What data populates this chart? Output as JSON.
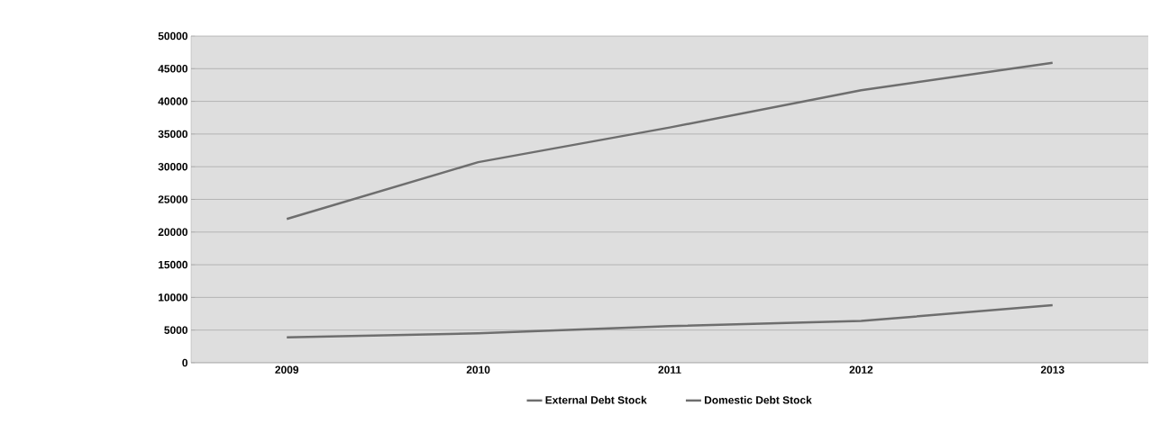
{
  "chart_data": {
    "type": "line",
    "categories": [
      "2009",
      "2010",
      "2011",
      "2012",
      "2013"
    ],
    "series": [
      {
        "name": "External Debt Stock",
        "color": "#6e6e6e",
        "values": [
          3900,
          4500,
          5600,
          6400,
          8800
        ]
      },
      {
        "name": "Domestic Debt Stock",
        "color": "#6e6e6e",
        "values": [
          22000,
          30700,
          36000,
          41700,
          45900
        ]
      }
    ],
    "ylim": [
      0,
      50000
    ],
    "yticks": [
      0,
      5000,
      10000,
      15000,
      20000,
      25000,
      30000,
      35000,
      40000,
      45000,
      50000
    ],
    "grid": "y",
    "legend": "bottom",
    "marker": "none",
    "line_style": "solid"
  }
}
